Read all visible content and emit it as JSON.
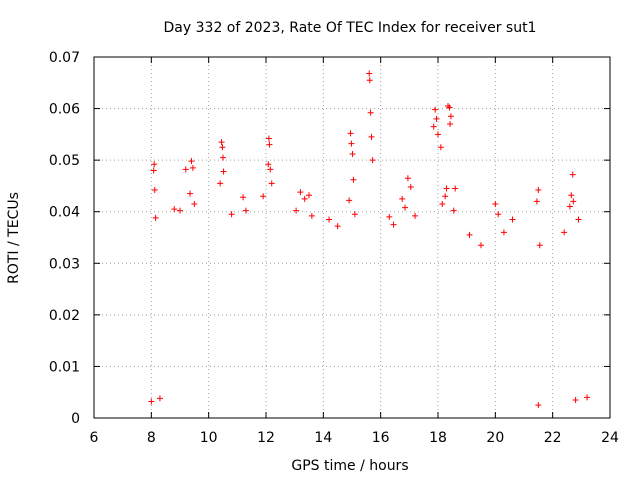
{
  "chart_data": {
    "type": "scatter",
    "title": "Day 332 of 2023, Rate Of TEC Index for receiver sut1",
    "xlabel": "GPS time / hours",
    "ylabel": "ROTI / TECUs",
    "xlim": [
      6,
      24
    ],
    "ylim": [
      0,
      0.07
    ],
    "x_ticks": [
      "6",
      "8",
      "10",
      "12",
      "14",
      "16",
      "18",
      "20",
      "22",
      "24"
    ],
    "x_tick_values": [
      6,
      8,
      10,
      12,
      14,
      16,
      18,
      20,
      22,
      24
    ],
    "y_ticks": [
      "0",
      "0.01",
      "0.02",
      "0.03",
      "0.04",
      "0.05",
      "0.06",
      "0.07"
    ],
    "y_tick_values": [
      0,
      0.01,
      0.02,
      0.03,
      0.04,
      0.05,
      0.06,
      0.07
    ],
    "grid": true,
    "marker": "plus",
    "marker_color": "#ff0000",
    "series": [
      {
        "name": "ROTI",
        "points": [
          [
            15.6,
            0.0668
          ],
          [
            15.62,
            0.0655
          ],
          [
            15.65,
            0.0592
          ],
          [
            15.68,
            0.0545
          ],
          [
            15.72,
            0.05
          ],
          [
            18.35,
            0.0605
          ],
          [
            18.4,
            0.0602
          ],
          [
            18.45,
            0.0585
          ],
          [
            18.42,
            0.057
          ],
          [
            17.9,
            0.0598
          ],
          [
            17.95,
            0.058
          ],
          [
            17.85,
            0.0565
          ],
          [
            18.0,
            0.055
          ],
          [
            18.1,
            0.0525
          ],
          [
            8.1,
            0.0492
          ],
          [
            8.08,
            0.048
          ],
          [
            8.12,
            0.0442
          ],
          [
            8.15,
            0.0388
          ],
          [
            9.4,
            0.0498
          ],
          [
            9.45,
            0.0485
          ],
          [
            9.2,
            0.0482
          ],
          [
            9.35,
            0.0435
          ],
          [
            9.5,
            0.0415
          ],
          [
            10.45,
            0.0535
          ],
          [
            10.48,
            0.0525
          ],
          [
            10.5,
            0.0505
          ],
          [
            10.52,
            0.0478
          ],
          [
            10.4,
            0.0455
          ],
          [
            12.1,
            0.0542
          ],
          [
            12.12,
            0.053
          ],
          [
            12.08,
            0.0492
          ],
          [
            12.15,
            0.0482
          ],
          [
            12.2,
            0.0455
          ],
          [
            11.9,
            0.043
          ],
          [
            14.95,
            0.0552
          ],
          [
            14.98,
            0.0532
          ],
          [
            15.02,
            0.0512
          ],
          [
            14.9,
            0.0422
          ],
          [
            15.05,
            0.0462
          ],
          [
            15.1,
            0.0395
          ],
          [
            13.2,
            0.0438
          ],
          [
            13.35,
            0.0425
          ],
          [
            13.5,
            0.0432
          ],
          [
            13.05,
            0.0402
          ],
          [
            13.6,
            0.0392
          ],
          [
            16.95,
            0.0465
          ],
          [
            16.75,
            0.0425
          ],
          [
            17.05,
            0.0448
          ],
          [
            16.85,
            0.0408
          ],
          [
            17.2,
            0.0392
          ],
          [
            18.3,
            0.0445
          ],
          [
            18.25,
            0.043
          ],
          [
            18.55,
            0.0402
          ],
          [
            18.6,
            0.0445
          ],
          [
            18.15,
            0.0415
          ],
          [
            20.0,
            0.0415
          ],
          [
            20.1,
            0.0395
          ],
          [
            20.6,
            0.0385
          ],
          [
            20.3,
            0.036
          ],
          [
            21.5,
            0.0442
          ],
          [
            21.45,
            0.042
          ],
          [
            21.55,
            0.0335
          ],
          [
            22.7,
            0.0472
          ],
          [
            22.65,
            0.0432
          ],
          [
            22.72,
            0.042
          ],
          [
            22.6,
            0.041
          ],
          [
            22.9,
            0.0385
          ],
          [
            22.4,
            0.036
          ],
          [
            11.2,
            0.0428
          ],
          [
            11.3,
            0.0402
          ],
          [
            10.8,
            0.0395
          ],
          [
            9.0,
            0.0402
          ],
          [
            8.8,
            0.0405
          ],
          [
            14.2,
            0.0385
          ],
          [
            14.5,
            0.0372
          ],
          [
            16.3,
            0.039
          ],
          [
            16.45,
            0.0375
          ],
          [
            19.1,
            0.0355
          ],
          [
            19.5,
            0.0335
          ],
          [
            21.5,
            0.0025
          ],
          [
            8.0,
            0.0032
          ],
          [
            8.3,
            0.0038
          ],
          [
            22.8,
            0.0035
          ],
          [
            23.2,
            0.004
          ]
        ]
      }
    ]
  }
}
